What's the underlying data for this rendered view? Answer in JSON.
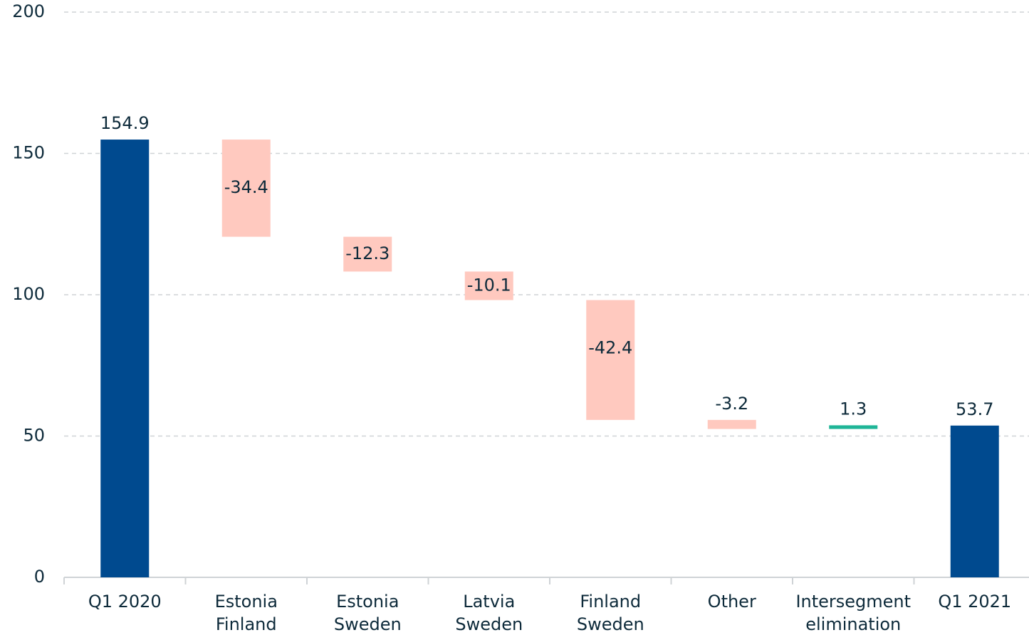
{
  "chart_data": {
    "type": "waterfall",
    "categories": [
      [
        "Q1 2020"
      ],
      [
        "Estonia",
        "Finland"
      ],
      [
        "Estonia",
        "Sweden"
      ],
      [
        "Latvia",
        "Sweden"
      ],
      [
        "Finland",
        "Sweden"
      ],
      [
        "Other"
      ],
      [
        "Intersegment",
        "elimination"
      ],
      [
        "Q1 2021"
      ]
    ],
    "values": [
      154.9,
      -34.4,
      -12.3,
      -10.1,
      -42.4,
      -3.2,
      1.3,
      53.7
    ],
    "colors": {
      "total": "#004a8f",
      "decrease": "#ffc9bf",
      "increase": "#1fb597"
    },
    "ylim": [
      0,
      200
    ],
    "yticks": [
      0,
      50,
      100,
      150,
      200
    ],
    "grid": true
  }
}
